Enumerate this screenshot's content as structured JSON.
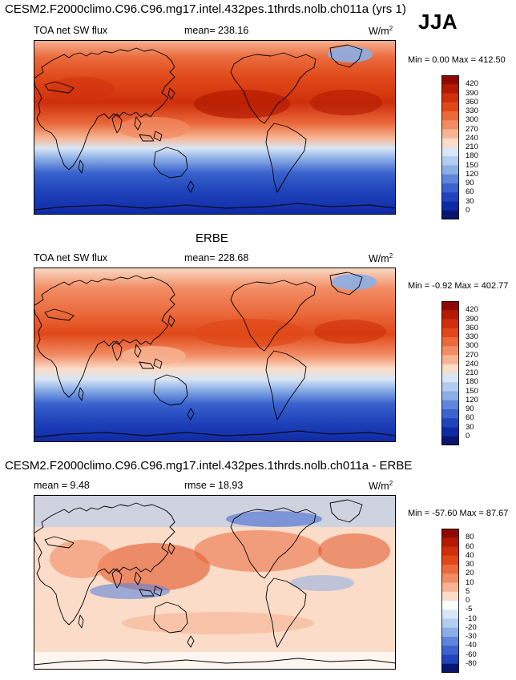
{
  "season": "JJA",
  "panels": [
    {
      "id": "model",
      "heading": "CESM2.F2000climo.C96.C96.mg17.intel.432pes.1thrds.nolb.ch011a (yrs 1)",
      "left_label": "TOA net SW flux",
      "center_label": "mean= 238.16",
      "units": "W/m",
      "units_sup": "2",
      "min_label": "Min =",
      "min_value": "0.00",
      "max_label": "Max =",
      "max_value": "412.50",
      "legend_ticks": [
        "420",
        "390",
        "360",
        "330",
        "300",
        "270",
        "240",
        "210",
        "180",
        "150",
        "120",
        "90",
        "60",
        "30",
        "0"
      ]
    },
    {
      "id": "obs",
      "heading": "ERBE",
      "left_label": "TOA net SW flux",
      "center_label": "mean= 228.68",
      "units": "W/m",
      "units_sup": "2",
      "min_label": "Min =",
      "min_value": "-0.92",
      "max_label": "Max =",
      "max_value": "402.77",
      "legend_ticks": [
        "420",
        "390",
        "360",
        "330",
        "300",
        "270",
        "240",
        "210",
        "180",
        "150",
        "120",
        "90",
        "60",
        "30",
        "0"
      ]
    },
    {
      "id": "diff",
      "heading": "CESM2.F2000climo.C96.C96.mg17.intel.432pes.1thrds.nolb.ch011a - ERBE",
      "left_label": "mean =   9.48",
      "center_label": "rmse =  18.93",
      "units": "W/m",
      "units_sup": "2",
      "min_label": "Min =",
      "min_value": "-57.60",
      "max_label": "Max =",
      "max_value": "87.67",
      "legend_ticks": [
        "80",
        "60",
        "40",
        "30",
        "20",
        "10",
        "5",
        "0",
        "-5",
        "-10",
        "-20",
        "-30",
        "-40",
        "-60",
        "-80"
      ]
    }
  ],
  "colors": {
    "flux_scale": [
      "#8c0a00",
      "#b31a00",
      "#cf2f0c",
      "#e04818",
      "#ea6a3c",
      "#f28c64",
      "#f7b494",
      "#fadcc8",
      "#d8e6f5",
      "#b3ccef",
      "#8caee6",
      "#5f86db",
      "#3a63cd",
      "#1f44bb",
      "#0e2aa4",
      "#08166f"
    ],
    "diff_scale": [
      "#8c0a00",
      "#b31a00",
      "#cf2f0c",
      "#e04818",
      "#ea6a3c",
      "#f28c64",
      "#f7b494",
      "#fadcc8",
      "#ffffff",
      "#d8e6f5",
      "#b3ccef",
      "#8caee6",
      "#5f86db",
      "#3a63cd",
      "#1f44bb",
      "#08166f"
    ],
    "coastline": "#000000"
  },
  "chart_data": [
    {
      "type": "heatmap",
      "title": "CESM2.F2000climo.C96.C96.mg17.intel.432pes.1thrds.nolb.ch011a (yrs 1)",
      "variable": "TOA net SW flux",
      "units": "W/m2",
      "mean": 238.16,
      "min": 0.0,
      "max": 412.5,
      "contour_levels": [
        0,
        30,
        60,
        90,
        120,
        150,
        180,
        210,
        240,
        270,
        300,
        330,
        360,
        390,
        420
      ]
    },
    {
      "type": "heatmap",
      "title": "ERBE",
      "variable": "TOA net SW flux",
      "units": "W/m2",
      "mean": 228.68,
      "min": -0.92,
      "max": 402.77,
      "contour_levels": [
        0,
        30,
        60,
        90,
        120,
        150,
        180,
        210,
        240,
        270,
        300,
        330,
        360,
        390,
        420
      ]
    },
    {
      "type": "heatmap",
      "title": "CESM2.F2000climo.C96.C96.mg17.intel.432pes.1thrds.nolb.ch011a - ERBE",
      "units": "W/m2",
      "mean": 9.48,
      "rmse": 18.93,
      "min": -57.6,
      "max": 87.67,
      "contour_levels": [
        -80,
        -60,
        -40,
        -30,
        -20,
        -10,
        -5,
        0,
        5,
        10,
        20,
        30,
        40,
        60,
        80
      ]
    }
  ]
}
